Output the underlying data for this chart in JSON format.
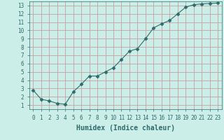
{
  "x": [
    0,
    1,
    2,
    3,
    4,
    5,
    6,
    7,
    8,
    9,
    10,
    11,
    12,
    13,
    14,
    15,
    16,
    17,
    18,
    19,
    20,
    21,
    22,
    23
  ],
  "y": [
    2.8,
    1.7,
    1.5,
    1.2,
    1.1,
    2.6,
    3.5,
    4.5,
    4.5,
    5.0,
    5.5,
    6.5,
    7.5,
    7.8,
    9.0,
    10.3,
    10.8,
    11.2,
    12.0,
    12.8,
    13.1,
    13.2,
    13.25,
    13.3
  ],
  "line_color": "#2e6b6b",
  "marker": "D",
  "marker_size": 2.5,
  "bg_color": "#cceee8",
  "grid_color": "#c8a0a0",
  "xlabel": "Humidex (Indice chaleur)",
  "xlim": [
    -0.5,
    23.5
  ],
  "ylim": [
    0.5,
    13.5
  ],
  "xticks": [
    0,
    1,
    2,
    3,
    4,
    5,
    6,
    7,
    8,
    9,
    10,
    11,
    12,
    13,
    14,
    15,
    16,
    17,
    18,
    19,
    20,
    21,
    22,
    23
  ],
  "yticks": [
    1,
    2,
    3,
    4,
    5,
    6,
    7,
    8,
    9,
    10,
    11,
    12,
    13
  ],
  "tick_color": "#2e6b6b",
  "label_color": "#2e6b6b",
  "tick_fontsize": 5.5,
  "xlabel_fontsize": 7.0,
  "linewidth": 0.8
}
